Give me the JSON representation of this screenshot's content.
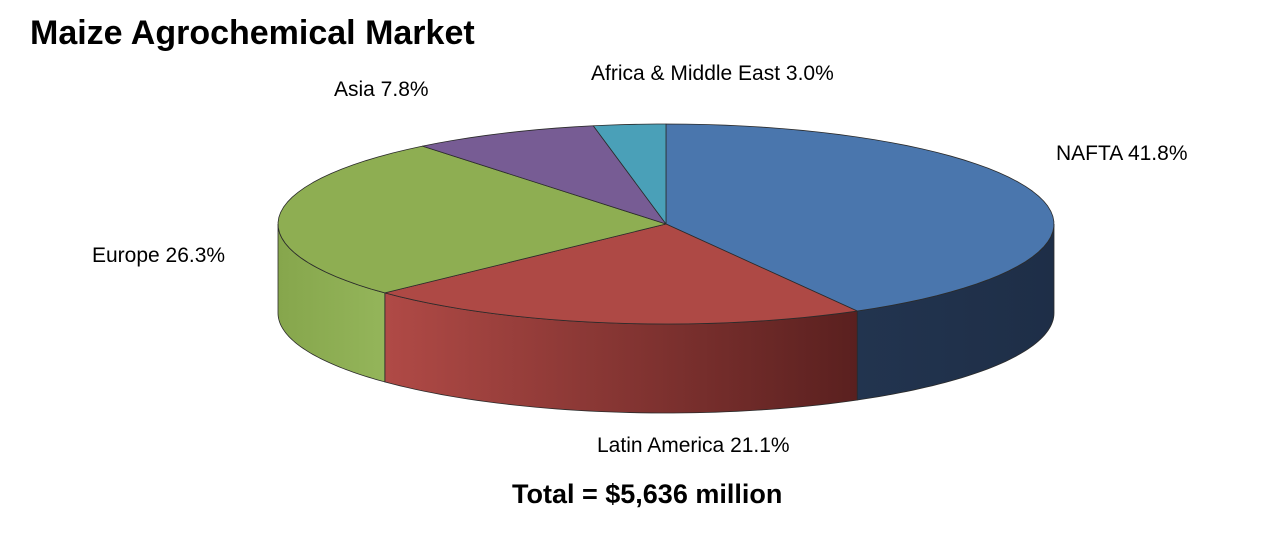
{
  "title": "Maize Agrochemical Market",
  "total_text": "Total = $5,636 million",
  "chart_data": {
    "type": "pie",
    "title": "Maize Agrochemical Market",
    "subtitle": "Total = $5,636 million",
    "total": 5636,
    "unit": "$ million",
    "is_3d": true,
    "slices": [
      {
        "name": "NAFTA",
        "value": 41.8,
        "label": "NAFTA 41.8%",
        "color": "#4A76AD",
        "side_color": "#22344F"
      },
      {
        "name": "Latin America",
        "value": 21.1,
        "label": "Latin America 21.1%",
        "color": "#AE4945",
        "side_color": "#6E2A28"
      },
      {
        "name": "Europe",
        "value": 26.3,
        "label": "Europe 26.3%",
        "color": "#8EAE52",
        "side_color": "#86A64C"
      },
      {
        "name": "Asia",
        "value": 7.8,
        "label": "Asia 7.8%",
        "color": "#775C94",
        "side_color": "#4C3A60"
      },
      {
        "name": "Africa & Middle East",
        "value": 3.0,
        "label": "Africa & Middle East 3.0%",
        "color": "#4AA0B8",
        "side_color": "#2C6C7E"
      }
    ]
  }
}
